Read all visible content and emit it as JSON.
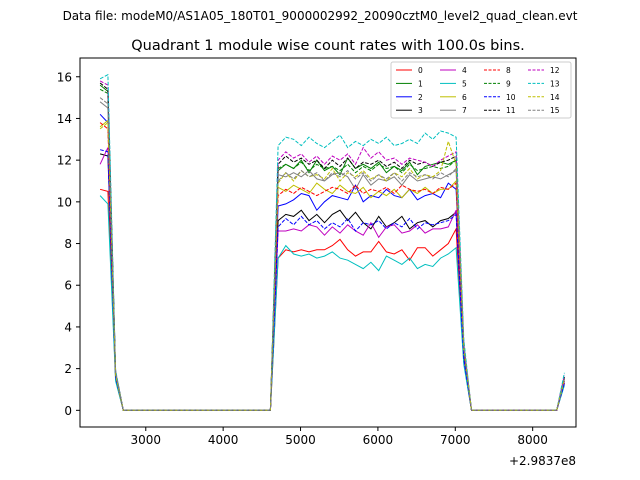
{
  "figure": {
    "suptitle": "Data file: modeM0/AS1A05_180T01_9000002992_20090cztM0_level2_quad_clean.evt",
    "title": "Quadrant 1 module wise count rates with 100.0s bins."
  },
  "chart_data": {
    "type": "line",
    "x_offset_label": "+2.9837e8",
    "x_tick_values": [
      3000,
      4000,
      5000,
      6000,
      7000,
      8000
    ],
    "x_tick_labels": [
      "3000",
      "4000",
      "5000",
      "6000",
      "7000",
      "8000"
    ],
    "y_tick_values": [
      0,
      2,
      4,
      6,
      8,
      10,
      12,
      14,
      16
    ],
    "y_tick_labels": [
      "0",
      "2",
      "4",
      "6",
      "8",
      "10",
      "12",
      "14",
      "16"
    ],
    "xlim": [
      2150,
      8560
    ],
    "ylim": [
      -0.8,
      16.9
    ],
    "xlabel": "",
    "ylabel": "",
    "grid": false,
    "legend_placement": "top-right",
    "x": [
      2410,
      2510,
      2610,
      2710,
      2810,
      4610,
      4710,
      4810,
      4910,
      5010,
      5110,
      5210,
      5310,
      5410,
      5510,
      5610,
      5710,
      5810,
      5910,
      6010,
      6110,
      6210,
      6310,
      6410,
      6510,
      6610,
      6710,
      6810,
      6910,
      7010,
      7110,
      7210,
      7310,
      8310,
      8410
    ],
    "series": [
      {
        "name": "0",
        "color": "#ff0000",
        "dash": "solid",
        "values": [
          10.6,
          10.5,
          1.5,
          0,
          0,
          0,
          7.3,
          7.7,
          7.6,
          7.7,
          7.6,
          7.7,
          7.7,
          7.9,
          8.2,
          7.7,
          7.4,
          7.6,
          7.6,
          8.1,
          7.6,
          7.5,
          7.7,
          7.2,
          7.8,
          7.8,
          7.4,
          7.7,
          8.0,
          8.7,
          2.3,
          0,
          0,
          0,
          1.3
        ]
      },
      {
        "name": "1",
        "color": "#008000",
        "dash": "solid",
        "values": [
          15.6,
          15.3,
          1.8,
          0,
          0,
          0,
          11.5,
          11.8,
          11.6,
          12.0,
          11.4,
          12.0,
          11.5,
          11.7,
          11.3,
          12.1,
          11.6,
          11.8,
          11.6,
          11.9,
          11.4,
          11.7,
          11.5,
          11.9,
          11.3,
          11.7,
          11.8,
          11.9,
          11.8,
          12.0,
          3.0,
          0,
          0,
          0,
          1.5
        ]
      },
      {
        "name": "2",
        "color": "#0000ff",
        "dash": "solid",
        "values": [
          14.2,
          13.8,
          1.7,
          0,
          0,
          0,
          9.8,
          9.9,
          10.1,
          10.4,
          10.3,
          9.6,
          10.0,
          10.3,
          10.2,
          10.1,
          10.8,
          10.0,
          10.3,
          10.2,
          10.6,
          10.3,
          10.2,
          10.6,
          10.1,
          10.3,
          10.4,
          10.2,
          10.9,
          10.6,
          2.8,
          0,
          0,
          0,
          1.4
        ]
      },
      {
        "name": "3",
        "color": "#000000",
        "dash": "solid",
        "values": [
          12.3,
          12.2,
          1.6,
          0,
          0,
          0,
          9.1,
          9.4,
          9.3,
          9.6,
          9.1,
          9.4,
          9.0,
          9.4,
          9.6,
          9.1,
          9.5,
          9.0,
          8.7,
          9.3,
          8.8,
          9.0,
          9.3,
          8.7,
          9.0,
          9.1,
          8.8,
          9.1,
          9.2,
          9.5,
          2.5,
          0,
          0,
          0,
          1.3
        ]
      },
      {
        "name": "4",
        "color": "#bf00bf",
        "dash": "solid",
        "values": [
          11.8,
          12.6,
          1.6,
          0,
          0,
          0,
          8.6,
          8.6,
          8.7,
          8.6,
          8.9,
          8.8,
          8.4,
          8.8,
          8.5,
          8.9,
          8.6,
          8.4,
          9.0,
          8.3,
          8.8,
          8.9,
          8.5,
          8.6,
          8.9,
          8.5,
          8.7,
          8.7,
          8.8,
          9.6,
          2.4,
          0,
          0,
          0,
          1.3
        ]
      },
      {
        "name": "5",
        "color": "#00bfbf",
        "dash": "solid",
        "values": [
          10.3,
          9.9,
          1.4,
          0,
          0,
          0,
          7.3,
          7.9,
          7.5,
          7.4,
          7.5,
          7.3,
          7.4,
          7.6,
          7.3,
          7.2,
          7.0,
          6.8,
          7.1,
          6.7,
          7.4,
          7.2,
          7.0,
          7.3,
          6.8,
          7.0,
          6.9,
          7.3,
          7.5,
          7.8,
          2.2,
          0,
          0,
          0,
          1.2
        ]
      },
      {
        "name": "6",
        "color": "#bfbf00",
        "dash": "solid",
        "values": [
          13.6,
          13.9,
          1.7,
          0,
          0,
          0,
          10.7,
          10.5,
          10.8,
          10.6,
          10.4,
          10.9,
          10.6,
          10.4,
          10.8,
          10.5,
          10.4,
          10.7,
          10.2,
          10.5,
          10.3,
          10.6,
          10.2,
          10.6,
          10.4,
          10.7,
          10.4,
          10.6,
          10.6,
          11.0,
          2.9,
          0,
          0,
          0,
          1.5
        ]
      },
      {
        "name": "7",
        "color": "#808080",
        "dash": "solid",
        "values": [
          14.8,
          14.5,
          1.8,
          0,
          0,
          0,
          11.3,
          11.2,
          11.4,
          11.2,
          11.5,
          11.1,
          11.0,
          11.3,
          11.4,
          11.2,
          10.6,
          11.3,
          10.8,
          11.1,
          11.0,
          11.2,
          10.8,
          11.3,
          11.0,
          11.1,
          11.2,
          11.1,
          11.3,
          11.5,
          3.0,
          0,
          0,
          0,
          1.5
        ]
      },
      {
        "name": "8",
        "color": "#ff0000",
        "dash": "dashed",
        "values": [
          13.8,
          13.5,
          1.7,
          0,
          0,
          0,
          10.3,
          10.6,
          10.4,
          10.7,
          10.5,
          10.3,
          10.5,
          10.7,
          10.6,
          10.4,
          10.8,
          10.4,
          10.6,
          10.5,
          10.7,
          10.4,
          10.8,
          10.6,
          10.5,
          10.6,
          10.4,
          10.7,
          10.6,
          10.9,
          2.8,
          0,
          0,
          0,
          1.4
        ]
      },
      {
        "name": "9",
        "color": "#008000",
        "dash": "dashed",
        "values": [
          15.4,
          15.2,
          1.8,
          0,
          0,
          0,
          11.6,
          11.8,
          11.6,
          11.9,
          11.5,
          11.8,
          11.6,
          11.7,
          11.5,
          11.8,
          11.4,
          11.7,
          11.5,
          11.8,
          11.6,
          11.7,
          11.4,
          11.8,
          11.5,
          11.6,
          11.7,
          11.6,
          11.7,
          12.0,
          3.0,
          0,
          0,
          0,
          1.6
        ]
      },
      {
        "name": "10",
        "color": "#0000ff",
        "dash": "dashed",
        "values": [
          12.5,
          12.4,
          1.6,
          0,
          0,
          0,
          8.8,
          9.2,
          8.9,
          9.3,
          8.9,
          9.1,
          8.7,
          9.0,
          8.8,
          9.2,
          8.6,
          9.0,
          8.9,
          9.1,
          8.7,
          9.0,
          8.8,
          9.2,
          8.7,
          9.0,
          8.9,
          9.0,
          9.1,
          9.4,
          2.5,
          0,
          0,
          0,
          1.3
        ]
      },
      {
        "name": "11",
        "color": "#000000",
        "dash": "dashed",
        "values": [
          15.7,
          15.4,
          1.8,
          0,
          0,
          0,
          11.8,
          12.2,
          11.9,
          12.1,
          11.8,
          12.0,
          11.6,
          12.0,
          11.7,
          12.1,
          11.6,
          11.9,
          11.8,
          12.0,
          11.7,
          11.9,
          11.6,
          12.0,
          11.8,
          11.9,
          11.7,
          11.9,
          12.0,
          12.2,
          3.1,
          0,
          0,
          0,
          1.6
        ]
      },
      {
        "name": "12",
        "color": "#bf00bf",
        "dash": "dashed",
        "values": [
          15.8,
          15.6,
          1.9,
          0,
          0,
          0,
          12.0,
          12.4,
          12.1,
          12.3,
          11.9,
          12.2,
          11.8,
          12.2,
          12.0,
          12.3,
          11.8,
          12.6,
          12.1,
          12.4,
          12.0,
          12.1,
          11.8,
          12.1,
          12.0,
          11.9,
          11.7,
          12.0,
          12.2,
          12.4,
          3.2,
          0,
          0,
          0,
          1.7
        ]
      },
      {
        "name": "13",
        "color": "#00bfbf",
        "dash": "dashed",
        "values": [
          15.9,
          16.1,
          1.9,
          0,
          0,
          0,
          12.7,
          13.1,
          13.0,
          12.7,
          13.1,
          12.8,
          12.6,
          12.9,
          13.2,
          12.6,
          12.9,
          12.7,
          13.0,
          12.8,
          13.1,
          12.7,
          12.8,
          13.0,
          12.8,
          13.3,
          13.0,
          13.4,
          13.3,
          13.1,
          3.4,
          0,
          0,
          0,
          1.8
        ]
      },
      {
        "name": "14",
        "color": "#bfbf00",
        "dash": "dashed",
        "values": [
          13.5,
          13.8,
          1.7,
          0,
          0,
          0,
          10.9,
          11.4,
          11.0,
          11.5,
          11.2,
          11.3,
          11.1,
          11.6,
          11.0,
          11.4,
          11.2,
          11.5,
          11.1,
          11.3,
          11.0,
          11.4,
          11.2,
          11.6,
          11.1,
          11.3,
          11.2,
          11.5,
          12.9,
          11.8,
          3.0,
          0,
          0,
          0,
          1.5
        ]
      },
      {
        "name": "15",
        "color": "#808080",
        "dash": "dashed",
        "values": [
          15.0,
          14.7,
          1.8,
          0,
          0,
          0,
          11.0,
          11.4,
          11.1,
          11.5,
          11.2,
          11.4,
          11.0,
          11.4,
          11.2,
          11.5,
          11.1,
          11.4,
          11.0,
          11.3,
          11.1,
          11.4,
          11.0,
          11.4,
          11.2,
          11.3,
          11.1,
          11.4,
          11.2,
          11.6,
          3.0,
          0,
          0,
          0,
          1.5
        ]
      }
    ]
  }
}
